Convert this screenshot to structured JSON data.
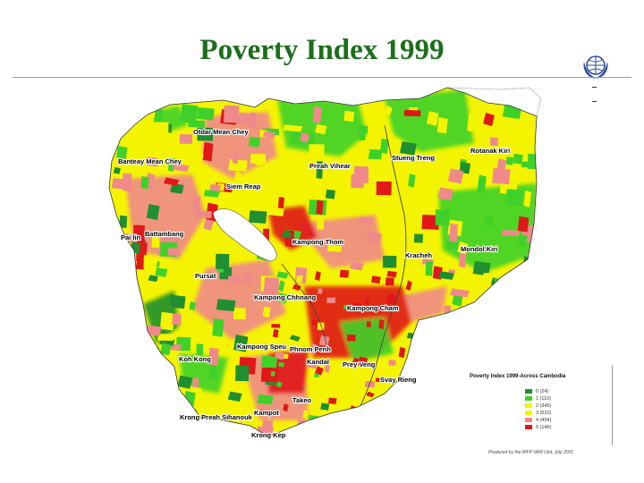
{
  "slide": {
    "title": "Poverty Index 1999",
    "logo_icon": "wfp-un-emblem-icon"
  },
  "colors": {
    "title": "#1a6f1a",
    "class_0": "#1f8f2f",
    "class_1": "#3fd12a",
    "class_2": "#f4f400",
    "class_3": "#f4f400",
    "class_4": "#f08a8a",
    "class_5": "#e01818",
    "lake": "#ffffff",
    "background_logo": "#c8cce6"
  },
  "map": {
    "provinces": [
      "Otdar Mean Chey",
      "Banteay Mean Chey",
      "Siem Reap",
      "Preah Vihear",
      "Stueng Treng",
      "Rotanak Kiri",
      "Pai lin",
      "Battambang",
      "Kampong Thom",
      "Kracheh",
      "Mondol Kiri",
      "Pursat",
      "Kampong Chhnang",
      "Kampong Cham",
      "Kampong Speu",
      "Phnom Penh",
      "Kandal",
      "Prey Veng",
      "Koh Kong",
      "Svay Rieng",
      "Takeo",
      "Kampot",
      "Krong Preah Sihanouk",
      "Krong Kep"
    ]
  },
  "legend": {
    "title": "Poverty Index 1999-Across Cambodia",
    "items": [
      {
        "class": "0",
        "count": "(24)"
      },
      {
        "class": "1",
        "count": "(116)"
      },
      {
        "class": "2",
        "count": "(345)"
      },
      {
        "class": "3",
        "count": "(522)"
      },
      {
        "class": "4",
        "count": "(454)"
      },
      {
        "class": "5",
        "count": "(146)"
      }
    ]
  },
  "credit": "Produced by the WFP VAM Unit, July 2001"
}
